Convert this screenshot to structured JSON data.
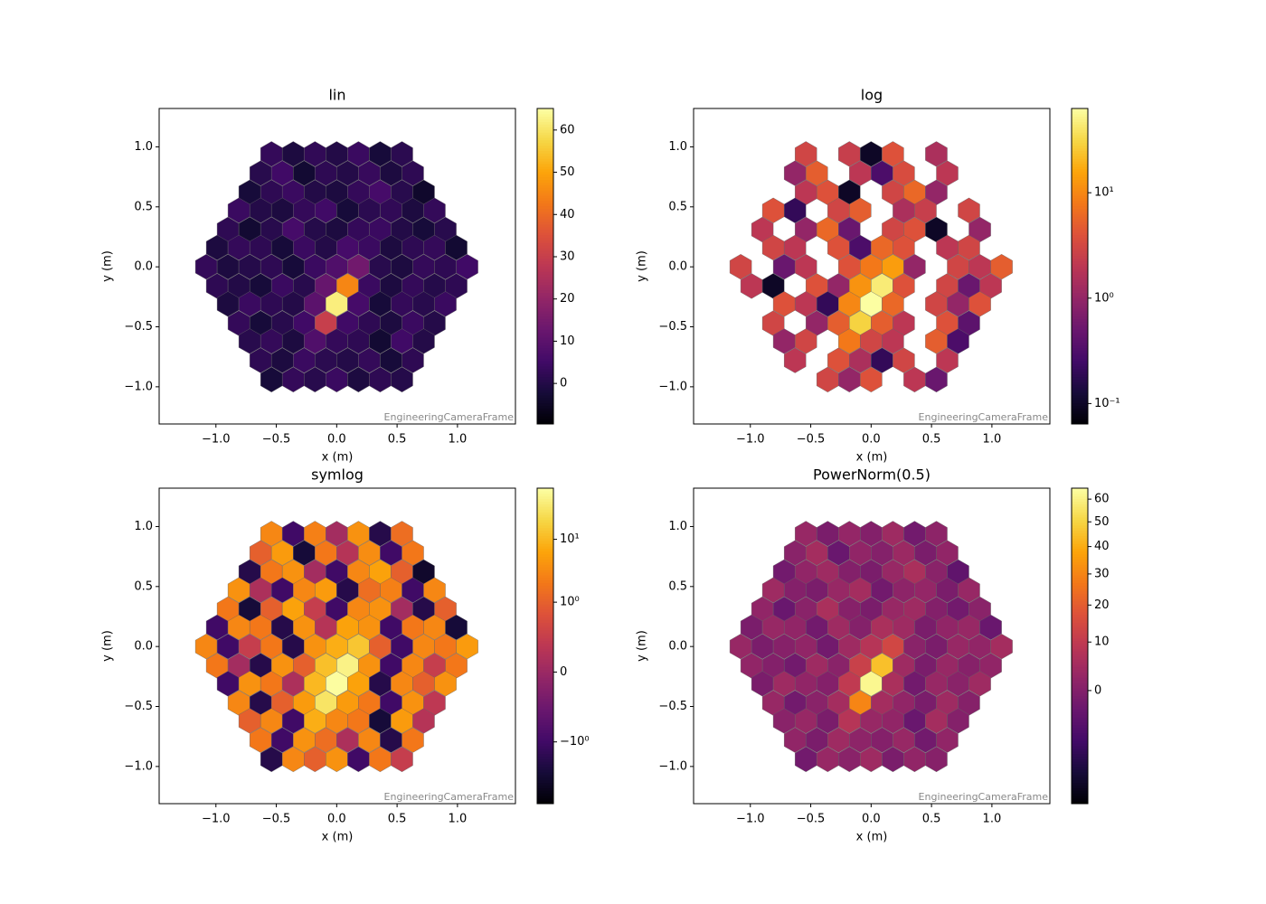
{
  "image": {
    "rows": [
      {
        "y": 0.94,
        "x": [
          -0.54,
          -0.36,
          -0.18,
          0,
          0.18,
          0.36,
          0.54
        ],
        "values": [
          3,
          -1,
          2.5,
          0.1,
          4,
          -2,
          1.5
        ]
      },
      {
        "y": 0.78,
        "x": [
          -0.63,
          -0.45,
          -0.27,
          -0.09,
          0.09,
          0.27,
          0.45,
          0.63
        ],
        "values": [
          1,
          5,
          -3,
          2,
          0.3,
          3.5,
          -1,
          2
        ]
      },
      {
        "y": 0.62,
        "x": [
          -0.72,
          -0.54,
          -0.36,
          -0.18,
          0,
          0.18,
          0.36,
          0.54,
          0.72
        ],
        "values": [
          -2,
          2,
          4,
          0.1,
          -1,
          3,
          6,
          1,
          -4
        ]
      },
      {
        "y": 0.47,
        "x": [
          -0.81,
          -0.63,
          -0.45,
          -0.27,
          -0.09,
          0.09,
          0.27,
          0.45,
          0.63,
          0.81
        ],
        "values": [
          4,
          0.2,
          -1,
          3,
          5,
          -2,
          1.5,
          2.5,
          -1,
          3
        ]
      },
      {
        "y": 0.31,
        "x": [
          -0.9,
          -0.72,
          -0.54,
          -0.36,
          -0.18,
          0,
          0.18,
          0.36,
          0.54,
          0.72,
          0.9
        ],
        "values": [
          2,
          -3,
          1,
          6,
          0.5,
          -1,
          3,
          4,
          0.1,
          -2,
          1
        ]
      },
      {
        "y": 0.16,
        "x": [
          -0.99,
          -0.81,
          -0.63,
          -0.45,
          -0.27,
          -0.09,
          0.09,
          0.27,
          0.45,
          0.63,
          0.81,
          0.99
        ],
        "values": [
          -1,
          3,
          2,
          -2,
          4,
          0.3,
          6,
          4,
          -1,
          2,
          3,
          -3
        ]
      },
      {
        "y": 0,
        "x": [
          -1.08,
          -0.9,
          -0.72,
          -0.54,
          -0.36,
          -0.18,
          0,
          0.18,
          0.36,
          0.54,
          0.72,
          0.9,
          1.08
        ],
        "values": [
          3,
          -1,
          0.5,
          2,
          -2,
          4,
          8,
          14,
          1,
          -1,
          3,
          2,
          5
        ]
      },
      {
        "y": -0.16,
        "x": [
          -0.99,
          -0.81,
          -0.63,
          -0.45,
          -0.27,
          -0.09,
          0.09,
          0.27,
          0.45,
          0.63,
          0.81,
          0.99
        ],
        "values": [
          2,
          0.1,
          -2,
          4,
          1,
          12,
          45,
          4,
          -1,
          3,
          0.5,
          2
        ]
      },
      {
        "y": -0.31,
        "x": [
          -0.9,
          -0.72,
          -0.54,
          -0.36,
          -0.18,
          0,
          0.18,
          0.36,
          0.54,
          0.72,
          0.9
        ],
        "values": [
          -1,
          4,
          2,
          0.2,
          10,
          62,
          6,
          -2,
          3,
          1,
          4
        ]
      },
      {
        "y": -0.47,
        "x": [
          -0.81,
          -0.63,
          -0.45,
          -0.27,
          -0.09,
          0.09,
          0.27,
          0.45,
          0.63,
          0.81
        ],
        "values": [
          3,
          -2,
          1,
          5,
          30,
          5,
          2,
          -1,
          4,
          0.4
        ]
      },
      {
        "y": -0.62,
        "x": [
          -0.72,
          -0.54,
          -0.36,
          -0.18,
          0,
          0.18,
          0.36,
          0.54,
          0.72
        ],
        "values": [
          1,
          3,
          -1,
          8,
          3,
          2,
          -3,
          5,
          0.3
        ]
      },
      {
        "y": -0.78,
        "x": [
          -0.63,
          -0.45,
          -0.27,
          -0.09,
          0.09,
          0.27,
          0.45,
          0.63
        ],
        "values": [
          2,
          -1,
          4,
          1.5,
          0.2,
          3,
          -2,
          2
        ]
      },
      {
        "y": -0.94,
        "x": [
          -0.54,
          -0.36,
          -0.18,
          0,
          0.18,
          0.36,
          0.54
        ],
        "values": [
          -2,
          3,
          1,
          4,
          -1,
          2,
          0.5
        ]
      }
    ]
  },
  "chart_data": [
    {
      "type": "camera",
      "title": "lin",
      "norm": "linear",
      "colormap": "inferno",
      "xlabel": "x  (m)",
      "ylabel": "y  (m)",
      "frame": "EngineeringCameraFrame",
      "xlim": [
        -1.47,
        1.48
      ],
      "ylim": [
        -1.31,
        1.32
      ],
      "xticks": [
        {
          "value": -1,
          "label": "−1.0"
        },
        {
          "value": -0.5,
          "label": "−0.5"
        },
        {
          "value": 0,
          "label": "0.0"
        },
        {
          "value": 0.5,
          "label": "0.5"
        },
        {
          "value": 1,
          "label": "1.0"
        }
      ],
      "yticks": [
        {
          "value": -1,
          "label": "−1.0"
        },
        {
          "value": -0.5,
          "label": "−0.5"
        },
        {
          "value": 0,
          "label": "0.0"
        },
        {
          "value": 0.5,
          "label": "0.5"
        },
        {
          "value": 1,
          "label": "1.0"
        }
      ],
      "clim": [
        -9.6,
        65.1
      ],
      "cticks": [
        0,
        10,
        20,
        30,
        40,
        50,
        60
      ]
    },
    {
      "type": "camera",
      "title": "log",
      "norm": "log",
      "colormap": "inferno",
      "xlabel": "x  (m)",
      "ylabel": "y  (m)",
      "frame": "EngineeringCameraFrame",
      "xlim": [
        -1.47,
        1.48
      ],
      "ylim": [
        -1.31,
        1.32
      ],
      "xticks": [
        {
          "value": -1,
          "label": "−1.0"
        },
        {
          "value": -0.5,
          "label": "−0.5"
        },
        {
          "value": 0,
          "label": "0.0"
        },
        {
          "value": 0.5,
          "label": "0.5"
        },
        {
          "value": 1,
          "label": "1.0"
        }
      ],
      "yticks": [
        {
          "value": -1,
          "label": "−1.0"
        },
        {
          "value": -0.5,
          "label": "−0.5"
        },
        {
          "value": 0,
          "label": "0.0"
        },
        {
          "value": 0.5,
          "label": "0.5"
        },
        {
          "value": 1,
          "label": "1.0"
        }
      ],
      "clim": [
        0.064,
        63
      ],
      "cticks": [
        {
          "value": 0.1,
          "label": "10⁻¹"
        },
        {
          "value": 1,
          "label": "10⁰"
        },
        {
          "value": 10,
          "label": "10¹"
        }
      ]
    },
    {
      "type": "camera",
      "title": "symlog",
      "norm": "symlog",
      "linthresh": 1,
      "linscale": 1,
      "colormap": "inferno",
      "xlabel": "x  (m)",
      "ylabel": "y  (m)",
      "frame": "EngineeringCameraFrame",
      "xlim": [
        -1.47,
        1.48
      ],
      "ylim": [
        -1.31,
        1.32
      ],
      "xticks": [
        {
          "value": -1,
          "label": "−1.0"
        },
        {
          "value": -0.5,
          "label": "−0.5"
        },
        {
          "value": 0,
          "label": "0.0"
        },
        {
          "value": 0.5,
          "label": "0.5"
        },
        {
          "value": 1,
          "label": "1.0"
        }
      ],
      "yticks": [
        {
          "value": -1,
          "label": "−1.0"
        },
        {
          "value": -0.5,
          "label": "−0.5"
        },
        {
          "value": 0,
          "label": "0.0"
        },
        {
          "value": 0.5,
          "label": "0.5"
        },
        {
          "value": 1,
          "label": "1.0"
        }
      ],
      "clim": [
        -9.6,
        65.1
      ],
      "cticks": [
        {
          "value": -1,
          "label": "−10⁰"
        },
        0,
        {
          "value": 1,
          "label": "10⁰"
        },
        {
          "value": 10,
          "label": "10¹"
        }
      ]
    },
    {
      "type": "camera",
      "title": "PowerNorm(0.5)",
      "norm": "power",
      "gamma": 0.5,
      "colormap": "inferno",
      "xlabel": "x  (m)",
      "ylabel": "y  (m)",
      "frame": "EngineeringCameraFrame",
      "xlim": [
        -1.47,
        1.48
      ],
      "ylim": [
        -1.31,
        1.32
      ],
      "xticks": [
        {
          "value": -1,
          "label": "−1.0"
        },
        {
          "value": -0.5,
          "label": "−0.5"
        },
        {
          "value": 0,
          "label": "0.0"
        },
        {
          "value": 0.5,
          "label": "0.5"
        },
        {
          "value": 1,
          "label": "1.0"
        }
      ],
      "yticks": [
        {
          "value": -1,
          "label": "−1.0"
        },
        {
          "value": -0.5,
          "label": "−0.5"
        },
        {
          "value": 0,
          "label": "0.0"
        },
        {
          "value": 0.5,
          "label": "0.5"
        },
        {
          "value": 1,
          "label": "1.0"
        }
      ],
      "clim": [
        -9.6,
        65.1
      ],
      "cticks": [
        0,
        10,
        20,
        30,
        40,
        50,
        60
      ]
    }
  ]
}
